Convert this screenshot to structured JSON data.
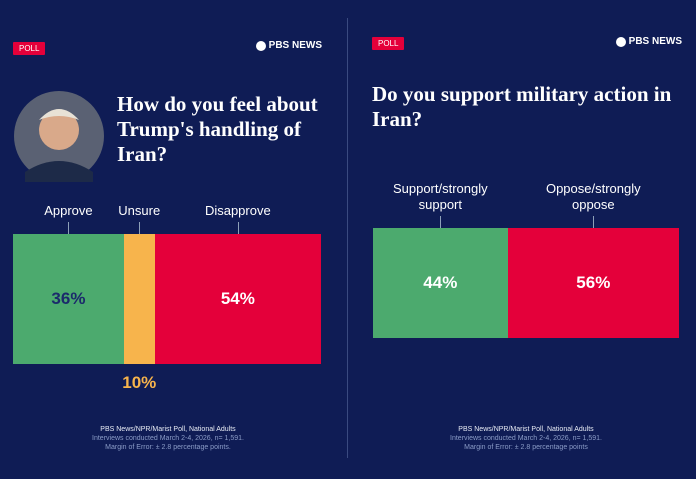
{
  "chart_data": [
    {
      "type": "bar",
      "badge": "POLL",
      "logo": "PBS NEWS",
      "title": "How do you feel about Trump's handling of Iran?",
      "categories": [
        "Approve",
        "Unsure",
        "Disapprove"
      ],
      "values": [
        36,
        10,
        54
      ],
      "value_labels": [
        "36%",
        "10%",
        "54%"
      ],
      "colors": [
        "#4caa6e",
        "#f7b44c",
        "#e4003a"
      ],
      "value_label_colors": [
        "#1b2a6b",
        "#f7b44c",
        "#ffffff"
      ],
      "notes": [
        "PBS News/NPR/Marist Poll, National Adults",
        "Interviews conducted March 2-4, 2026, n= 1,591.",
        "Margin of Error: ± 2.8 percentage points."
      ]
    },
    {
      "type": "bar",
      "badge": "POLL",
      "logo": "PBS NEWS",
      "title": "Do you support military action in Iran?",
      "categories": [
        "Support/strongly support",
        "Oppose/strongly oppose"
      ],
      "values": [
        44,
        56
      ],
      "value_labels": [
        "44%",
        "56%"
      ],
      "colors": [
        "#4caa6e",
        "#e4003a"
      ],
      "value_label_colors": [
        "#ffffff",
        "#ffffff"
      ],
      "notes": [
        "PBS News/NPR/Marist Poll, National Adults",
        "Interviews conducted March 2-4, 2026, n= 1,591.",
        "Margin of Error: ± 2.8 percentage points"
      ]
    }
  ]
}
